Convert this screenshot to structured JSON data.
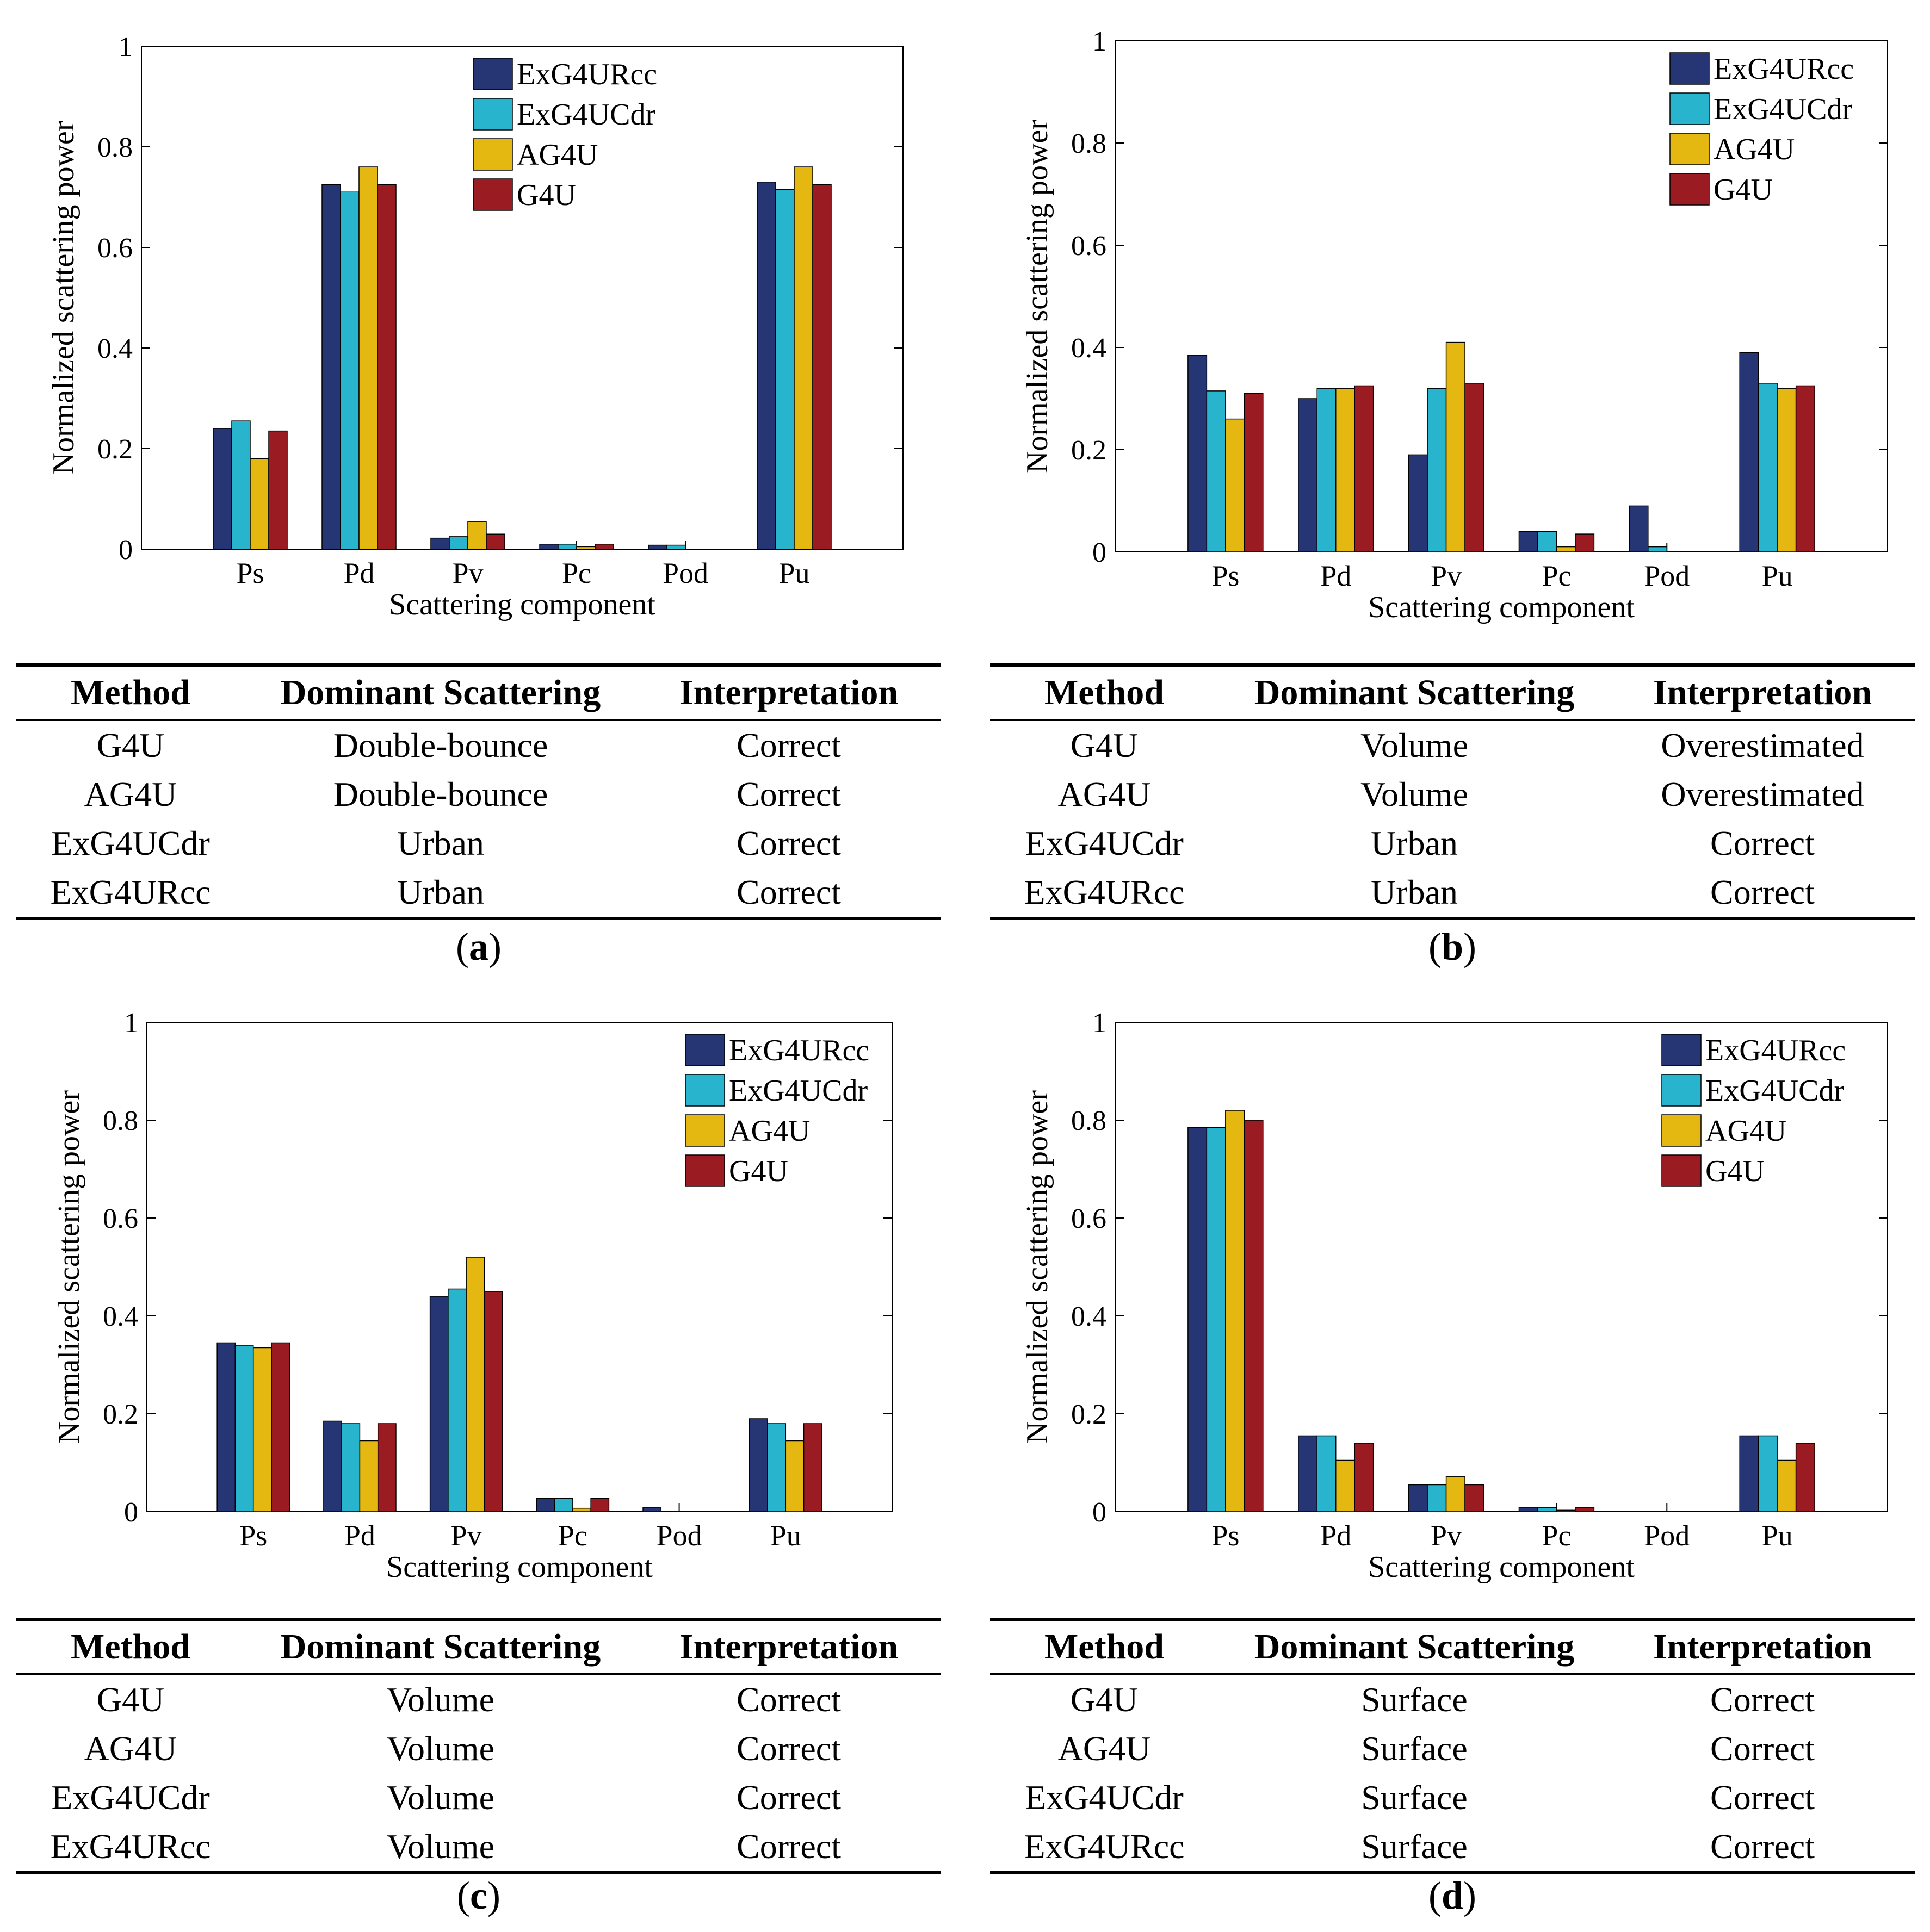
{
  "legend": [
    "ExG4URcc",
    "ExG4UCdr",
    "AG4U",
    "G4U"
  ],
  "colors": [
    "#263573",
    "#28b4cc",
    "#e4b711",
    "#9a1b22"
  ],
  "chart_data": [
    {
      "id": "a",
      "type": "bar",
      "xlabel": "Scattering component",
      "ylabel": "Normalized scattering power",
      "categories": [
        "Ps",
        "Pd",
        "Pv",
        "Pc",
        "Pod",
        "Pu"
      ],
      "ylim": [
        0,
        1
      ],
      "yticks": [
        "0",
        "0.2",
        "0.4",
        "0.6",
        "0.8",
        "1"
      ],
      "legend_position": "top-center",
      "series": [
        {
          "name": "ExG4URcc",
          "values": [
            0.24,
            0.725,
            0.022,
            0.01,
            0.008,
            0.73
          ]
        },
        {
          "name": "ExG4UCdr",
          "values": [
            0.255,
            0.71,
            0.025,
            0.01,
            0.008,
            0.715
          ]
        },
        {
          "name": "AG4U",
          "values": [
            0.18,
            0.76,
            0.055,
            0.005,
            0,
            0.76
          ]
        },
        {
          "name": "G4U",
          "values": [
            0.235,
            0.725,
            0.03,
            0.01,
            0,
            0.725
          ]
        }
      ]
    },
    {
      "id": "b",
      "type": "bar",
      "xlabel": "Scattering component",
      "ylabel": "Normalized scattering power",
      "categories": [
        "Ps",
        "Pd",
        "Pv",
        "Pc",
        "Pod",
        "Pu"
      ],
      "ylim": [
        0,
        1
      ],
      "yticks": [
        "0",
        "0.2",
        "0.4",
        "0.6",
        "0.8",
        "1"
      ],
      "legend_position": "top-right",
      "series": [
        {
          "name": "ExG4URcc",
          "values": [
            0.385,
            0.3,
            0.19,
            0.04,
            0.09,
            0.39
          ]
        },
        {
          "name": "ExG4UCdr",
          "values": [
            0.315,
            0.32,
            0.32,
            0.04,
            0.01,
            0.33
          ]
        },
        {
          "name": "AG4U",
          "values": [
            0.26,
            0.32,
            0.41,
            0.01,
            0,
            0.32
          ]
        },
        {
          "name": "G4U",
          "values": [
            0.31,
            0.325,
            0.33,
            0.035,
            0,
            0.325
          ]
        }
      ]
    },
    {
      "id": "c",
      "type": "bar",
      "xlabel": "Scattering component",
      "ylabel": "Normalized scattering power",
      "categories": [
        "Ps",
        "Pd",
        "Pv",
        "Pc",
        "Pod",
        "Pu"
      ],
      "ylim": [
        0,
        1
      ],
      "yticks": [
        "0",
        "0.2",
        "0.4",
        "0.6",
        "0.8",
        "1"
      ],
      "legend_position": "top-right",
      "series": [
        {
          "name": "ExG4URcc",
          "values": [
            0.345,
            0.185,
            0.44,
            0.027,
            0.008,
            0.19
          ]
        },
        {
          "name": "ExG4UCdr",
          "values": [
            0.34,
            0.18,
            0.455,
            0.027,
            0,
            0.18
          ]
        },
        {
          "name": "AG4U",
          "values": [
            0.335,
            0.145,
            0.52,
            0.007,
            0,
            0.145
          ]
        },
        {
          "name": "G4U",
          "values": [
            0.345,
            0.18,
            0.45,
            0.027,
            0,
            0.18
          ]
        }
      ]
    },
    {
      "id": "d",
      "type": "bar",
      "xlabel": "Scattering component",
      "ylabel": "Normalized scattering power",
      "categories": [
        "Ps",
        "Pd",
        "Pv",
        "Pc",
        "Pod",
        "Pu"
      ],
      "ylim": [
        0,
        1
      ],
      "yticks": [
        "0",
        "0.2",
        "0.4",
        "0.6",
        "0.8",
        "1"
      ],
      "legend_position": "top-right",
      "series": [
        {
          "name": "ExG4URcc",
          "values": [
            0.785,
            0.155,
            0.055,
            0.008,
            0,
            0.155
          ]
        },
        {
          "name": "ExG4UCdr",
          "values": [
            0.785,
            0.155,
            0.055,
            0.008,
            0,
            0.155
          ]
        },
        {
          "name": "AG4U",
          "values": [
            0.82,
            0.105,
            0.072,
            0.003,
            0,
            0.105
          ]
        },
        {
          "name": "G4U",
          "values": [
            0.8,
            0.14,
            0.055,
            0.008,
            0,
            0.14
          ]
        }
      ]
    }
  ],
  "tables": {
    "headers": [
      "Method",
      "Dominant Scattering",
      "Interpretation"
    ],
    "a": [
      [
        "G4U",
        "Double-bounce",
        "Correct"
      ],
      [
        "AG4U",
        "Double-bounce",
        "Correct"
      ],
      [
        "ExG4UCdr",
        "Urban",
        "Correct"
      ],
      [
        "ExG4URcc",
        "Urban",
        "Correct"
      ]
    ],
    "b": [
      [
        "G4U",
        "Volume",
        "Overestimated"
      ],
      [
        "AG4U",
        "Volume",
        "Overestimated"
      ],
      [
        "ExG4UCdr",
        "Urban",
        "Correct"
      ],
      [
        "ExG4URcc",
        "Urban",
        "Correct"
      ]
    ],
    "c": [
      [
        "G4U",
        "Volume",
        "Correct"
      ],
      [
        "AG4U",
        "Volume",
        "Correct"
      ],
      [
        "ExG4UCdr",
        "Volume",
        "Correct"
      ],
      [
        "ExG4URcc",
        "Volume",
        "Correct"
      ]
    ],
    "d": [
      [
        "G4U",
        "Surface",
        "Correct"
      ],
      [
        "AG4U",
        "Surface",
        "Correct"
      ],
      [
        "ExG4UCdr",
        "Surface",
        "Correct"
      ],
      [
        "ExG4URcc",
        "Surface",
        "Correct"
      ]
    ]
  },
  "captions": {
    "a": {
      "open": "(",
      "letter": "a",
      "close": ")"
    },
    "b": {
      "open": "(",
      "letter": "b",
      "close": ")"
    },
    "c": {
      "open": "(",
      "letter": "c",
      "close": ")"
    },
    "d": {
      "open": "(",
      "letter": "d",
      "close": ")"
    }
  }
}
